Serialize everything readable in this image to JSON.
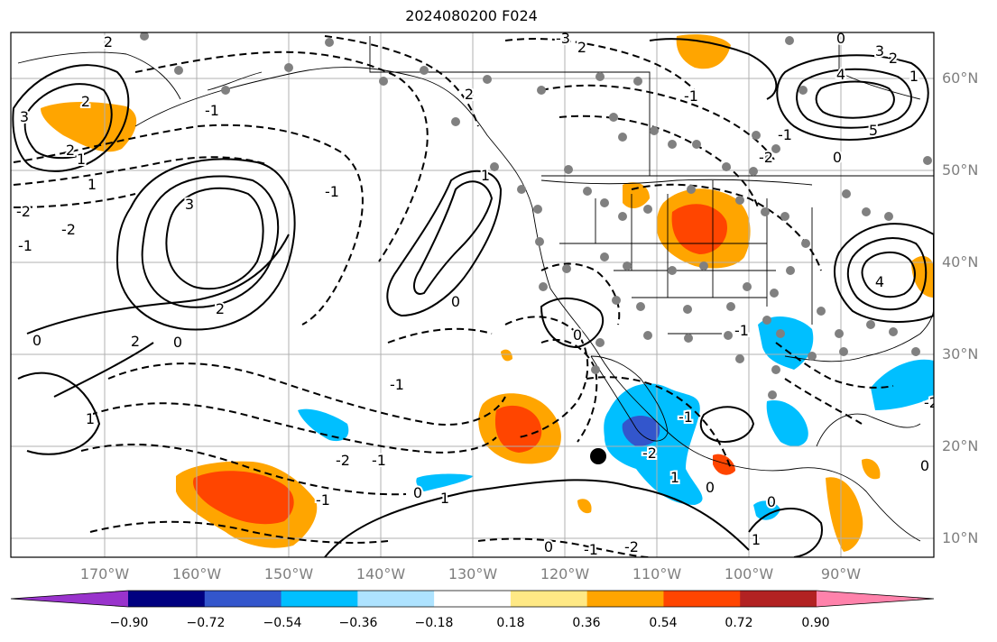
{
  "title": "2024080200 F024",
  "lon_labels": [
    "170°W",
    "160°W",
    "150°W",
    "140°W",
    "130°W",
    "120°W",
    "110°W",
    "100°W",
    "90°W"
  ],
  "lat_labels": [
    "60°N",
    "50°N",
    "40°N",
    "30°N",
    "20°N",
    "10°N"
  ],
  "colorbar": {
    "ticks": [
      "−0.90",
      "−0.72",
      "−0.54",
      "−0.36",
      "−0.18",
      "0.18",
      "0.36",
      "0.54",
      "0.72",
      "0.90"
    ],
    "colors": [
      "#9933cc",
      "#000080",
      "#3356cc",
      "#00bfff",
      "#aee3ff",
      "#ffffff",
      "#ffe985",
      "#ffa500",
      "#ff4500",
      "#b22222",
      "#ff82ab"
    ]
  },
  "contour_labels": [
    "2",
    "3",
    "1",
    "2",
    "2",
    "1",
    "-2",
    "2",
    "3",
    "-2",
    "-1",
    "0",
    "1",
    "2",
    "-1",
    "0",
    "1",
    "2",
    "-1",
    "0",
    "-1",
    "-2",
    "-1",
    "0",
    "1",
    "0",
    "-1",
    "-2",
    "-1",
    "0",
    "1",
    "2",
    "3",
    "4",
    "5",
    "-1",
    "-2",
    "0",
    "-1",
    "0",
    "-1",
    "1",
    "0",
    "-2",
    "-1",
    "0",
    "1",
    "4",
    "-3",
    "2",
    "0",
    "-2"
  ]
}
